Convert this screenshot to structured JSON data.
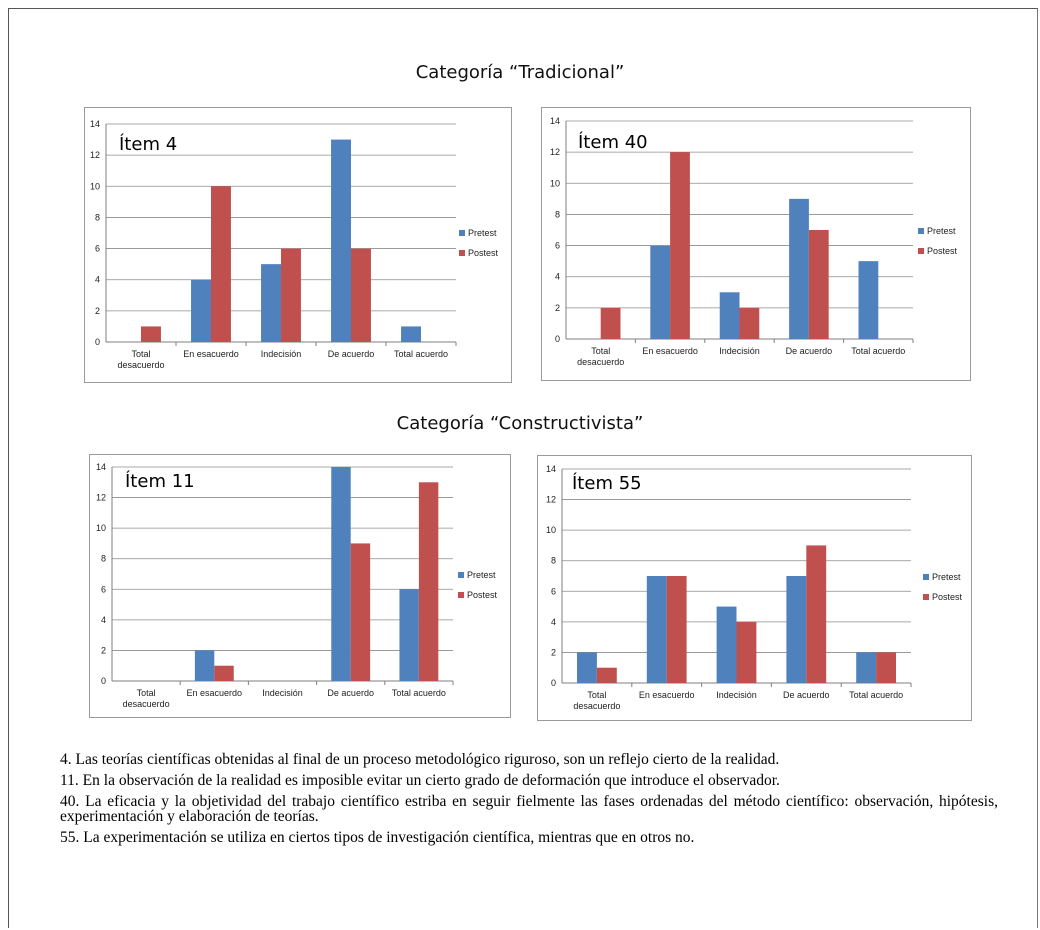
{
  "sections": {
    "traditional": "Categoría “Tradicional”",
    "constructivist": "Categoría “Constructivista”"
  },
  "colors": {
    "pretest": "#4f81bd",
    "postest": "#c0504d",
    "grid": "#8c8c8c"
  },
  "chart_data": [
    {
      "type": "bar",
      "title": "Ítem 4",
      "categories": [
        "Total desacuerdo",
        "En esacuerdo",
        "Indecisión",
        "De acuerdo",
        "Total acuerdo"
      ],
      "series": [
        {
          "name": "Pretest",
          "values": [
            0,
            4,
            5,
            13,
            1
          ]
        },
        {
          "name": "Postest",
          "values": [
            1,
            10,
            6,
            6,
            0
          ]
        }
      ],
      "ylim": [
        0,
        14
      ],
      "yticks": [
        0,
        2,
        4,
        6,
        8,
        10,
        12,
        14
      ],
      "grid": true,
      "legend": "right"
    },
    {
      "type": "bar",
      "title": "Ítem 40",
      "categories": [
        "Total desacuerdo",
        "En esacuerdo",
        "Indecisión",
        "De acuerdo",
        "Total acuerdo"
      ],
      "series": [
        {
          "name": "Pretest",
          "values": [
            0,
            6,
            3,
            9,
            5
          ]
        },
        {
          "name": "Postest",
          "values": [
            2,
            12,
            2,
            7,
            0
          ]
        }
      ],
      "ylim": [
        0,
        14
      ],
      "yticks": [
        0,
        2,
        4,
        6,
        8,
        10,
        12,
        14
      ],
      "grid": true,
      "legend": "right"
    },
    {
      "type": "bar",
      "title": "Ítem 11",
      "categories": [
        "Total desacuerdo",
        "En esacuerdo",
        "Indecisión",
        "De acuerdo",
        "Total acuerdo"
      ],
      "series": [
        {
          "name": "Pretest",
          "values": [
            0,
            2,
            0,
            14,
            6
          ]
        },
        {
          "name": "Postest",
          "values": [
            0,
            1,
            0,
            9,
            13
          ]
        }
      ],
      "ylim": [
        0,
        14
      ],
      "yticks": [
        0,
        2,
        4,
        6,
        8,
        10,
        12,
        14
      ],
      "grid": true,
      "legend": "right"
    },
    {
      "type": "bar",
      "title": "Ítem 55",
      "categories": [
        "Total desacuerdo",
        "En esacuerdo",
        "Indecisión",
        "De acuerdo",
        "Total acuerdo"
      ],
      "series": [
        {
          "name": "Pretest",
          "values": [
            2,
            7,
            5,
            7,
            2
          ]
        },
        {
          "name": "Postest",
          "values": [
            1,
            7,
            4,
            9,
            2
          ]
        }
      ],
      "ylim": [
        0,
        14
      ],
      "yticks": [
        0,
        2,
        4,
        6,
        8,
        10,
        12,
        14
      ],
      "grid": true,
      "legend": "right"
    }
  ],
  "notes": [
    "4. Las teorías científicas obtenidas al final de un proceso metodológico riguroso, son un reflejo cierto de la realidad.",
    "11. En la observación de la realidad es imposible evitar un cierto grado de deformación que introduce el observador.",
    "40. La eficacia y la objetividad del trabajo científico estriba en seguir fielmente las fases ordenadas del método científico: observación, hipótesis, experimentación y elaboración de teorías.",
    "55. La experimentación se utiliza en ciertos tipos de  investigación científica, mientras que en otros no."
  ]
}
